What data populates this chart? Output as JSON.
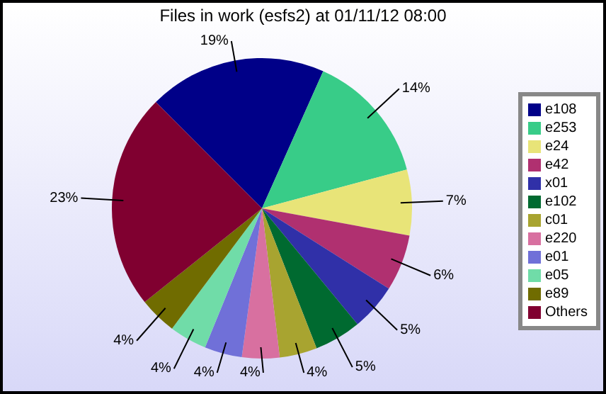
{
  "chart_data": {
    "type": "pie",
    "title": "Files in work (esfs2) at 01/11/12 08:00",
    "categories": [
      "e108",
      "e253",
      "e24",
      "e42",
      "x01",
      "e102",
      "c01",
      "e220",
      "e01",
      "e05",
      "e89",
      "Others"
    ],
    "values": [
      19,
      14,
      7,
      6,
      5,
      5,
      4,
      4,
      4,
      4,
      4,
      23
    ],
    "value_labels": [
      "19%",
      "14%",
      "7%",
      "6%",
      "5%",
      "5%",
      "4%",
      "4%",
      "4%",
      "4%",
      "4%",
      "23%"
    ],
    "colors": [
      "#000088",
      "#38cc88",
      "#e8e478",
      "#b03070",
      "#3030a8",
      "#006a30",
      "#a8a430",
      "#d870a0",
      "#7070d8",
      "#70dca8",
      "#706c00",
      "#800030"
    ],
    "legend": "right"
  }
}
